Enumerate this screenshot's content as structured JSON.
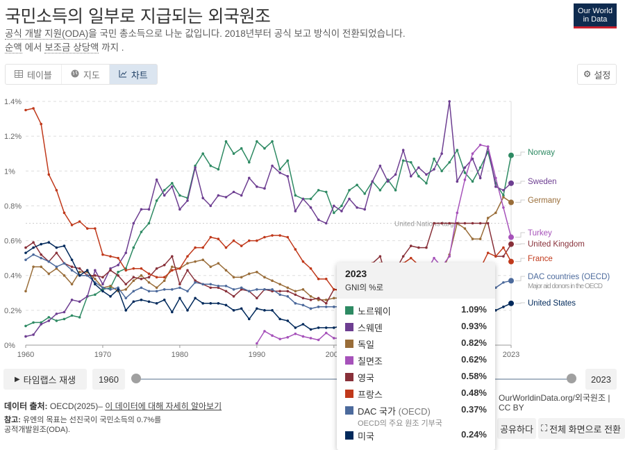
{
  "header": {
    "title": "국민소득의 일부로 지급되는 외국원조",
    "subtitle_line1_link": "공식 개발 지원(ODA)",
    "subtitle_line1_rest": "을 국민 총소득으로 나눈 값입니다. 2018년부터 공식 보고 방식이 전환되었습니다.",
    "subtitle_line2_link1": "순액",
    "subtitle_line2_mid": " 에서 ",
    "subtitle_line2_link2": "보조금 상당액",
    "subtitle_line2_end": " 까지 .",
    "logo_line1": "Our World",
    "logo_line2": "in Data"
  },
  "tabs": [
    {
      "label": "테이블",
      "icon": "table-icon"
    },
    {
      "label": "지도",
      "icon": "globe-icon"
    },
    {
      "label": "차트",
      "icon": "line-chart-icon",
      "active": true
    }
  ],
  "settings_label": "설정",
  "chart_data": {
    "type": "line",
    "x_start": 1960,
    "x_end": 2023,
    "ylim": [
      0,
      1.4
    ],
    "y_ticks": [
      "0%",
      "0.2%",
      "0.4%",
      "0.6%",
      "0.8%",
      "1%",
      "1.2%",
      "1.4%"
    ],
    "y_tick_values": [
      0,
      0.2,
      0.4,
      0.6,
      0.8,
      1.0,
      1.2,
      1.4
    ],
    "x_ticks": [
      "1960",
      "1970",
      "1980",
      "1990",
      "2000",
      "2010",
      "2023"
    ],
    "x_tick_values": [
      1960,
      1970,
      1980,
      1990,
      2000,
      2010,
      2023
    ],
    "grid": "horizontal dashed",
    "reference_line": {
      "value": 0.7,
      "label": "United Nations target"
    },
    "series": [
      {
        "name": "Norway",
        "tooltip_name": "노르웨이",
        "color": "#2e8a63",
        "latest": "1.09%",
        "values": [
          0.11,
          0.13,
          0.13,
          0.16,
          0.14,
          0.15,
          0.17,
          0.16,
          0.28,
          0.29,
          0.32,
          0.33,
          0.42,
          0.44,
          0.56,
          0.65,
          0.7,
          0.83,
          0.89,
          0.93,
          0.86,
          0.845,
          1.03,
          1.1,
          1.03,
          1.01,
          1.17,
          1.1,
          1.13,
          1.05,
          1.17,
          1.13,
          1.17,
          1.01,
          1.06,
          0.86,
          0.84,
          0.84,
          0.89,
          0.88,
          0.76,
          0.8,
          0.89,
          0.92,
          0.87,
          0.94,
          0.89,
          0.95,
          0.89,
          1.06,
          1.05,
          0.97,
          0.93,
          1.07,
          1.0,
          1.05,
          1.12,
          0.99,
          0.94,
          1.02,
          1.11,
          0.93,
          0.86,
          1.09
        ]
      },
      {
        "name": "Sweden",
        "tooltip_name": "스웨덴",
        "color": "#6d3e91",
        "latest": "0.93%",
        "values": [
          0.05,
          0.06,
          0.12,
          0.14,
          0.18,
          0.19,
          0.26,
          0.25,
          0.28,
          0.43,
          0.35,
          0.44,
          0.46,
          0.53,
          0.7,
          0.78,
          0.78,
          0.95,
          0.86,
          0.91,
          0.78,
          0.83,
          1.02,
          0.845,
          0.8,
          0.86,
          0.85,
          0.88,
          0.86,
          0.96,
          0.91,
          0.9,
          1.03,
          0.99,
          0.97,
          0.77,
          0.84,
          0.79,
          0.72,
          0.7,
          0.8,
          0.77,
          0.84,
          0.79,
          0.78,
          0.94,
          1.03,
          0.94,
          0.98,
          1.12,
          0.97,
          1.02,
          0.98,
          1.01,
          1.1,
          1.4,
          0.94,
          1.02,
          1.07,
          0.96,
          1.14,
          0.91,
          0.89,
          0.93
        ]
      },
      {
        "name": "Germany",
        "tooltip_name": "독일",
        "color": "#996d39",
        "latest": "0.82%",
        "values": [
          0.31,
          0.45,
          0.45,
          0.41,
          0.44,
          0.4,
          0.35,
          0.42,
          0.42,
          0.38,
          0.33,
          0.34,
          0.31,
          0.32,
          0.37,
          0.4,
          0.36,
          0.33,
          0.37,
          0.45,
          0.44,
          0.47,
          0.48,
          0.49,
          0.45,
          0.47,
          0.43,
          0.39,
          0.39,
          0.41,
          0.42,
          0.39,
          0.37,
          0.35,
          0.33,
          0.31,
          0.32,
          0.28,
          0.26,
          0.26,
          0.27,
          0.27,
          0.27,
          0.28,
          0.28,
          0.36,
          0.36,
          0.37,
          0.38,
          0.35,
          0.39,
          0.39,
          0.37,
          0.38,
          0.42,
          0.52,
          0.7,
          0.67,
          0.61,
          0.61,
          0.73,
          0.76,
          0.85,
          0.82
        ]
      },
      {
        "name": "Turkey",
        "tooltip_name": "칠면조",
        "color": "#a652ba",
        "latest": "0.62%",
        "values": [
          null,
          null,
          null,
          null,
          null,
          null,
          null,
          null,
          null,
          null,
          null,
          null,
          null,
          null,
          null,
          null,
          null,
          null,
          null,
          null,
          null,
          null,
          null,
          null,
          null,
          null,
          null,
          null,
          null,
          null,
          0.01,
          0.08,
          0.055,
          0.035,
          0.045,
          0.065,
          0.05,
          0.04,
          0.03,
          0.07,
          0.04,
          0.04,
          0.04,
          0.04,
          0.11,
          0.17,
          0.18,
          0.09,
          0.11,
          0.1,
          0.17,
          0.29,
          0.42,
          0.5,
          0.45,
          0.51,
          0.76,
          0.95,
          1.1,
          1.15,
          1.14,
          0.96,
          0.79,
          0.62
        ]
      },
      {
        "name": "United Kingdom",
        "tooltip_name": "영국",
        "color": "#883039",
        "latest": "0.58%",
        "values": [
          0.56,
          0.59,
          0.52,
          0.48,
          0.53,
          0.47,
          0.45,
          0.44,
          0.4,
          0.4,
          0.39,
          0.43,
          0.4,
          0.35,
          0.39,
          0.38,
          0.39,
          0.44,
          0.46,
          0.51,
          0.35,
          0.43,
          0.37,
          0.35,
          0.33,
          0.33,
          0.31,
          0.28,
          0.32,
          0.31,
          0.27,
          0.32,
          0.31,
          0.31,
          0.31,
          0.29,
          0.27,
          0.26,
          0.27,
          0.24,
          0.32,
          0.32,
          0.31,
          0.34,
          0.36,
          0.47,
          0.51,
          0.36,
          0.43,
          0.51,
          0.57,
          0.56,
          0.56,
          0.7,
          0.7,
          0.7,
          0.7,
          0.7,
          0.7,
          0.7,
          0.7,
          0.51,
          0.51,
          0.58
        ]
      },
      {
        "name": "France",
        "tooltip_name": "프랑스",
        "color": "#c0391b",
        "latest": "0.48%",
        "values": [
          1.35,
          1.36,
          1.27,
          0.98,
          0.89,
          0.76,
          0.69,
          0.71,
          0.67,
          0.67,
          0.52,
          0.51,
          0.5,
          0.43,
          0.44,
          0.44,
          0.41,
          0.39,
          0.39,
          0.43,
          0.44,
          0.51,
          0.56,
          0.56,
          0.62,
          0.61,
          0.56,
          0.6,
          0.57,
          0.6,
          0.6,
          0.62,
          0.63,
          0.63,
          0.62,
          0.55,
          0.48,
          0.44,
          0.38,
          0.38,
          0.32,
          0.31,
          0.37,
          0.4,
          0.41,
          0.47,
          0.47,
          0.38,
          0.39,
          0.47,
          0.5,
          0.46,
          0.45,
          0.41,
          0.37,
          0.37,
          0.38,
          0.43,
          0.43,
          0.44,
          0.53,
          0.51,
          0.56,
          0.48
        ]
      },
      {
        "name": "DAC countries (OECD)",
        "note": "Major aid donors in the OECD",
        "tooltip_name": "DAC 국가",
        "tooltip_paren": "(OECD)",
        "tooltip_note": "OECD의 주요 원조 기부국",
        "color": "#4c6a9c",
        "latest": "0.37%",
        "values": [
          0.49,
          0.52,
          0.5,
          0.48,
          0.45,
          0.47,
          0.43,
          0.4,
          0.4,
          0.36,
          0.33,
          0.32,
          0.33,
          0.27,
          0.31,
          0.33,
          0.31,
          0.31,
          0.32,
          0.32,
          0.33,
          0.31,
          0.36,
          0.35,
          0.35,
          0.34,
          0.34,
          0.32,
          0.33,
          0.31,
          0.32,
          0.32,
          0.32,
          0.29,
          0.28,
          0.24,
          0.23,
          0.21,
          0.22,
          0.22,
          0.22,
          0.22,
          0.23,
          0.25,
          0.26,
          0.32,
          0.31,
          0.27,
          0.3,
          0.31,
          0.32,
          0.31,
          0.29,
          0.3,
          0.3,
          0.3,
          0.32,
          0.31,
          0.31,
          0.3,
          0.32,
          0.33,
          0.36,
          0.37
        ]
      },
      {
        "name": "United States",
        "tooltip_name": "미국",
        "color": "#00295b",
        "latest": "0.24%",
        "values": [
          0.53,
          0.56,
          0.58,
          0.59,
          0.56,
          0.57,
          0.49,
          0.4,
          0.43,
          0.35,
          0.31,
          0.28,
          0.32,
          0.2,
          0.25,
          0.26,
          0.25,
          0.24,
          0.26,
          0.19,
          0.27,
          0.2,
          0.27,
          0.24,
          0.24,
          0.24,
          0.23,
          0.2,
          0.21,
          0.15,
          0.21,
          0.2,
          0.2,
          0.15,
          0.14,
          0.1,
          0.12,
          0.09,
          0.1,
          0.1,
          0.1,
          0.11,
          0.13,
          0.15,
          0.17,
          0.23,
          0.18,
          0.16,
          0.18,
          0.21,
          0.2,
          0.2,
          0.19,
          0.18,
          0.19,
          0.17,
          0.19,
          0.18,
          0.16,
          0.15,
          0.17,
          0.2,
          0.22,
          0.24
        ]
      }
    ]
  },
  "tooltip": {
    "year": "2023",
    "unit": "GNI의 %로"
  },
  "timeline": {
    "play_label": "타임랩스 재생",
    "start": "1960",
    "end": "2023"
  },
  "footer": {
    "source_label": "데이터 출처:",
    "source_value": " OECD(2025)– ",
    "source_link": "이 데이터에 대해 자세히 알아보기",
    "note_label": "참고:",
    "note_line1": " 유엔의 목표는 선진국이 국민소득의 0.7%를",
    "note_line2": "공적개발원조(ODA).",
    "url": "OurWorldinData.org/외국원조 | CC BY",
    "share_label": "공유하다",
    "fullscreen_label": "전체 화면으로 전환"
  }
}
